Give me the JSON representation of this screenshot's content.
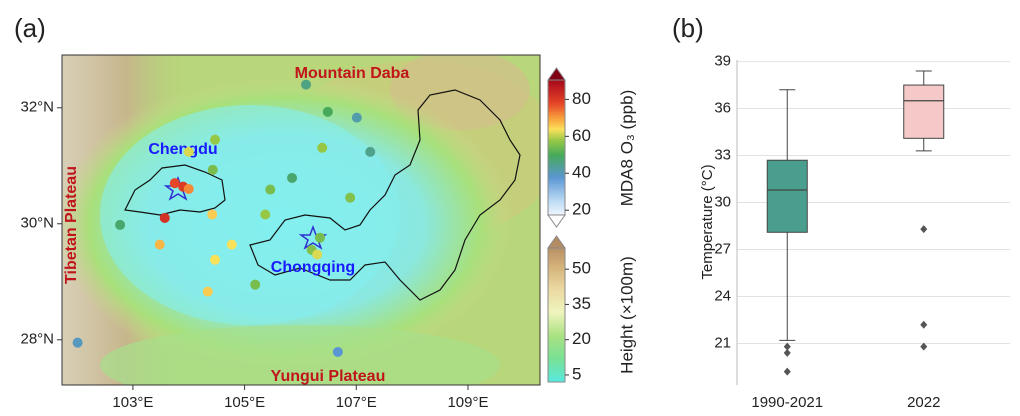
{
  "chart_data": [
    {
      "type": "map",
      "panel": "(a)",
      "xlim": [
        101.73,
        110.29
      ],
      "ylim": [
        27.22,
        32.91
      ],
      "xticks": [
        {
          "value": 103,
          "label": "103°E"
        },
        {
          "value": 105,
          "label": "105°E"
        },
        {
          "value": 107,
          "label": "107°E"
        },
        {
          "value": 109,
          "label": "109°E"
        }
      ],
      "yticks": [
        {
          "value": 28,
          "label": "28°N"
        },
        {
          "value": 30,
          "label": "30°N"
        },
        {
          "value": 32,
          "label": "32°N"
        }
      ],
      "annotations": [
        "Mountain Daba",
        "Tibetan Plateau",
        "Chengdu",
        "Chongqing",
        "Yungui Plateau"
      ],
      "stations": {
        "x": [
          103.75,
          103.9,
          104.0,
          103.57,
          104.42,
          103.48,
          104.43,
          104.47,
          104.0,
          104.77,
          104.47,
          104.34,
          105.19,
          105.37,
          105.46,
          105.85,
          106.39,
          106.1,
          106.49,
          107.01,
          107.25,
          106.89,
          106.2,
          106.3,
          106.35,
          102.77,
          102.01,
          106.67
        ],
        "y": [
          30.7,
          30.64,
          30.6,
          30.1,
          30.16,
          29.64,
          30.93,
          31.45,
          31.24,
          29.64,
          29.38,
          28.83,
          28.95,
          30.16,
          30.59,
          30.79,
          31.31,
          32.4,
          31.93,
          31.83,
          31.24,
          30.45,
          29.55,
          29.47,
          29.76,
          29.98,
          27.95,
          27.79
        ],
        "values": [
          78,
          80,
          72,
          82,
          66,
          68,
          55,
          58,
          62,
          64,
          64,
          66,
          55,
          58,
          55,
          48,
          58,
          46,
          50,
          42,
          45,
          56,
          56,
          62,
          55,
          48,
          40,
          38
        ]
      },
      "colorbar": {
        "label": "MDA8 O₃ (ppb)",
        "lim": [
          17.4,
          90.5
        ],
        "ticks": [
          20,
          40,
          60,
          80
        ]
      },
      "height_colorbar": {
        "label": "Height (×100m)",
        "lim": [
          2,
          59
        ],
        "ticks": [
          5,
          20,
          35,
          50
        ]
      }
    },
    {
      "type": "box",
      "panel": "(b)",
      "y_label": "Temperature (°C)",
      "categories": [
        "1990-2021",
        "2022"
      ],
      "ylim": [
        18.35,
        39.1
      ],
      "yticks": [
        21,
        24,
        27,
        30,
        33,
        36,
        39
      ],
      "grid": true,
      "series": [
        {
          "color": "#4a9e8e",
          "whisker_low": 21.2,
          "q1": 28.1,
          "median": 30.8,
          "q3": 32.7,
          "whisker_high": 37.2,
          "outliers": [
            20.8,
            20.4,
            19.2
          ]
        },
        {
          "color": "#f6c9c9",
          "whisker_low": 33.3,
          "q1": 34.1,
          "median": 36.5,
          "q3": 37.5,
          "whisker_high": 38.4,
          "outliers": [
            28.3,
            22.2,
            20.8
          ]
        }
      ]
    }
  ]
}
